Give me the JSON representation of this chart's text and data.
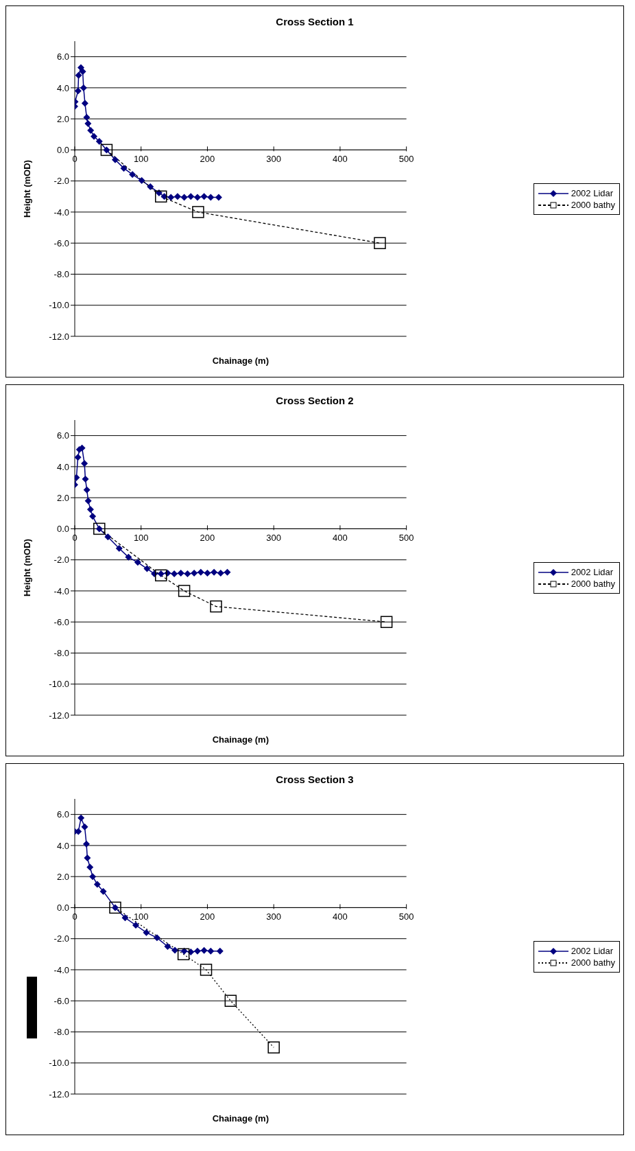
{
  "chart_data": [
    {
      "type": "line",
      "title": "Cross Section 1",
      "xlabel": "Chainage (m)",
      "ylabel": "Height (mOD)",
      "xlim": [
        0,
        500
      ],
      "xticks": [
        0,
        100,
        200,
        300,
        400,
        500
      ],
      "ylim": [
        -12,
        7
      ],
      "yticks": [
        {
          "value": -12,
          "label": "-12.0"
        },
        {
          "value": -10,
          "label": "-10.0"
        },
        {
          "value": -8,
          "label": "-8.0"
        },
        {
          "value": -6,
          "label": "-6.0"
        },
        {
          "value": -4,
          "label": "-4.0"
        },
        {
          "value": -2,
          "label": "-2.0"
        },
        {
          "value": 0,
          "label": "0.0"
        },
        {
          "value": 2,
          "label": "2.0"
        },
        {
          "value": 4,
          "label": "4.0"
        },
        {
          "value": 6,
          "label": "6.0"
        }
      ],
      "grid": "y",
      "legend": "right",
      "series": [
        {
          "name": "2002 Lidar",
          "color": "#000080",
          "marker": "diamond",
          "line_style": "solid",
          "x": [
            0,
            0.5,
            5,
            5.8,
            9.3,
            12,
            13.3,
            15.4,
            18,
            20,
            24,
            29,
            37,
            48,
            61,
            74,
            87,
            101,
            114,
            127,
            135,
            145,
            155,
            165,
            175,
            185,
            195,
            205,
            217
          ],
          "values": [
            2.8,
            3.1,
            3.8,
            4.8,
            5.3,
            5.05,
            4.0,
            3.0,
            2.1,
            1.7,
            1.26,
            0.87,
            0.55,
            0,
            -0.63,
            -1.18,
            -1.58,
            -1.97,
            -2.37,
            -2.76,
            -3.0,
            -3.05,
            -3.0,
            -3.05,
            -3.0,
            -3.05,
            -3.0,
            -3.05,
            -3.05
          ]
        },
        {
          "name": "2000 bathy",
          "color": "#000000",
          "marker": "square",
          "line_style": "dashed",
          "x": [
            48,
            130,
            186,
            460
          ],
          "values": [
            0,
            -3,
            -4,
            -6
          ]
        }
      ]
    },
    {
      "type": "line",
      "title": "Cross Section 2",
      "xlabel": "Chainage (m)",
      "ylabel": "Height (mOD)",
      "xlim": [
        0,
        500
      ],
      "xticks": [
        0,
        100,
        200,
        300,
        400,
        500
      ],
      "ylim": [
        -12,
        7
      ],
      "yticks": [
        {
          "value": -12,
          "label": "-12.0"
        },
        {
          "value": -10,
          "label": "-10.0"
        },
        {
          "value": -8,
          "label": "-8.0"
        },
        {
          "value": -6,
          "label": "-6.0"
        },
        {
          "value": -4,
          "label": "-4.0"
        },
        {
          "value": -2,
          "label": "-2.0"
        },
        {
          "value": 0,
          "label": "0.0"
        },
        {
          "value": 2,
          "label": "2.0"
        },
        {
          "value": 4,
          "label": "4.0"
        },
        {
          "value": 6,
          "label": "6.0"
        }
      ],
      "grid": "y",
      "legend": "right",
      "series": [
        {
          "name": "2002 Lidar",
          "color": "#000080",
          "marker": "diamond",
          "line_style": "solid",
          "x": [
            0,
            2.5,
            4.8,
            7,
            11,
            14.6,
            16,
            18.3,
            20.3,
            23.7,
            27,
            37,
            50,
            67,
            81,
            95,
            109,
            120,
            130,
            140,
            150,
            160,
            170,
            180,
            190,
            200,
            210,
            220,
            230
          ],
          "values": [
            2.83,
            3.3,
            4.6,
            5.1,
            5.2,
            4.2,
            3.2,
            2.5,
            1.8,
            1.24,
            0.8,
            0,
            -0.52,
            -1.26,
            -1.83,
            -2.16,
            -2.57,
            -2.9,
            -2.9,
            -2.85,
            -2.9,
            -2.85,
            -2.9,
            -2.85,
            -2.8,
            -2.85,
            -2.8,
            -2.85,
            -2.8
          ]
        },
        {
          "name": "2000 bathy",
          "color": "#000000",
          "marker": "square",
          "line_style": "dashed",
          "x": [
            37,
            130,
            165,
            213,
            470
          ],
          "values": [
            0,
            -3,
            -4,
            -5,
            -6
          ]
        }
      ]
    },
    {
      "type": "line",
      "title": "Cross Section 3",
      "xlabel": "Chainage (m)",
      "xlim": [
        0,
        500
      ],
      "xticks": [
        0,
        100,
        200,
        300,
        400,
        500
      ],
      "ylim": [
        -12,
        7
      ],
      "yticks": [
        {
          "value": -12,
          "label": "-12.0"
        },
        {
          "value": -10,
          "label": "-10.0"
        },
        {
          "value": -8,
          "label": "-8.0"
        },
        {
          "value": -6,
          "label": "-6.0"
        },
        {
          "value": -4,
          "label": "-4.0"
        },
        {
          "value": -2,
          "label": "-2.0"
        },
        {
          "value": 0,
          "label": "0.0"
        },
        {
          "value": 2,
          "label": "2.0"
        },
        {
          "value": 4,
          "label": "4.0"
        },
        {
          "value": 6,
          "label": "6.0"
        }
      ],
      "grid": "y",
      "legend": "right",
      "series": [
        {
          "name": "2002 Lidar",
          "color": "#000080",
          "marker": "diamond",
          "line_style": "solid",
          "x": [
            0,
            5.4,
            9.5,
            15,
            17.6,
            19,
            23,
            27,
            34,
            43,
            61,
            76,
            92,
            108,
            124,
            140,
            151,
            165,
            175,
            185,
            195,
            205,
            219
          ],
          "values": [
            4.9,
            4.9,
            5.77,
            5.2,
            4.1,
            3.2,
            2.6,
            2.0,
            1.5,
            1.05,
            0,
            -0.65,
            -1.13,
            -1.6,
            -1.94,
            -2.5,
            -2.74,
            -2.8,
            -2.85,
            -2.8,
            -2.75,
            -2.8,
            -2.8
          ]
        },
        {
          "name": "2000 bathy",
          "color": "#000000",
          "marker": "square",
          "line_style": "dotted",
          "x": [
            61,
            164,
            198,
            235,
            300
          ],
          "values": [
            0,
            -3,
            -4,
            -6,
            -9
          ]
        }
      ]
    }
  ]
}
